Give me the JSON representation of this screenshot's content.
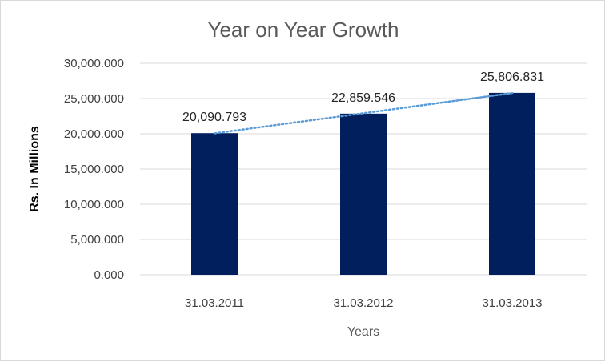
{
  "chart_data": {
    "type": "bar",
    "title": "Year on Year Growth",
    "xlabel": "Years",
    "ylabel": "Rs. In Millions",
    "categories": [
      "31.03.2011",
      "31.03.2012",
      "31.03.2013"
    ],
    "values": [
      20090.793,
      22859.546,
      25806.831
    ],
    "data_labels": [
      "20,090.793",
      "22,859.546",
      "25,806.831"
    ],
    "ylim": [
      0,
      30000
    ],
    "yticks": [
      0,
      5000,
      10000,
      15000,
      20000,
      25000,
      30000
    ],
    "ytick_labels": [
      "0.000",
      "5,000.000",
      "10,000.000",
      "15,000.000",
      "20,000.000",
      "25,000.000",
      "30,000.000"
    ],
    "grid": true,
    "legend": "none",
    "trendline": {
      "type": "linear",
      "style": "dotted"
    },
    "colors": {
      "bar": "#001f5c",
      "trendline": "#5b9bd5",
      "gridline": "#d9d9d9",
      "title": "#595959"
    }
  }
}
